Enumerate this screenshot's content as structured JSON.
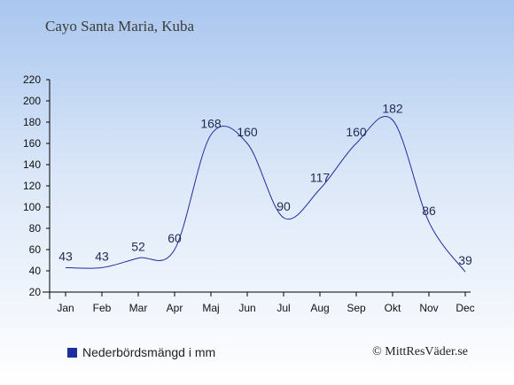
{
  "title": "Cayo Santa Maria, Kuba",
  "legend": {
    "label": "Nederbördsmängd i mm",
    "color": "#1f2da0"
  },
  "credit": "© MittResVäder.se",
  "colors": {
    "line": "#1f2da0",
    "label": "#1f2a55",
    "axis": "#000000"
  },
  "chart_data": {
    "type": "line",
    "categories": [
      "Jan",
      "Feb",
      "Mar",
      "Apr",
      "Maj",
      "Jun",
      "Jul",
      "Aug",
      "Sep",
      "Okt",
      "Nov",
      "Dec"
    ],
    "series": [
      {
        "values": [
          43,
          43,
          52,
          60,
          168,
          160,
          90,
          117,
          160,
          182,
          86,
          39
        ]
      }
    ],
    "ylim": [
      20,
      220
    ],
    "yticks": [
      20,
      40,
      60,
      80,
      100,
      120,
      140,
      160,
      180,
      200,
      220
    ],
    "grid": false,
    "legend_position": "bottom-left"
  }
}
